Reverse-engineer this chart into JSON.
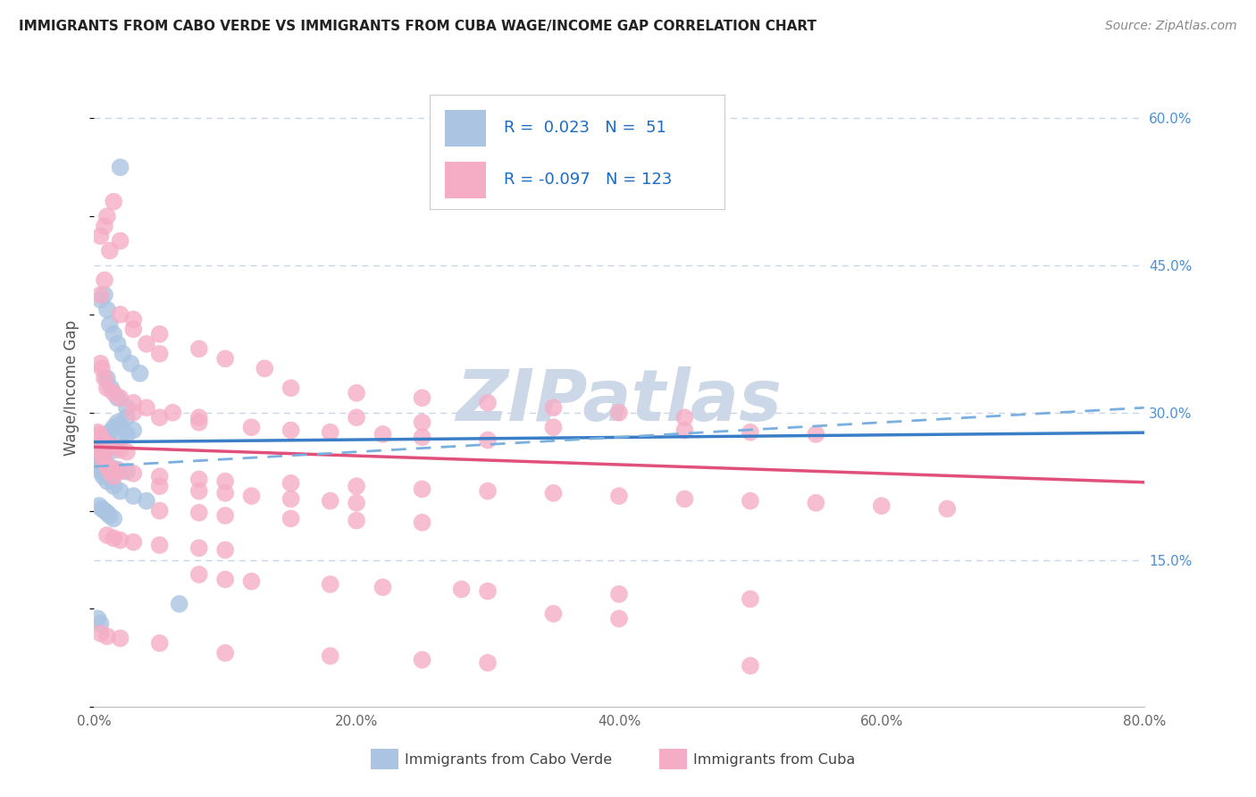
{
  "title": "IMMIGRANTS FROM CABO VERDE VS IMMIGRANTS FROM CUBA WAGE/INCOME GAP CORRELATION CHART",
  "source": "Source: ZipAtlas.com",
  "ylabel": "Wage/Income Gap",
  "cabo_verde_R": "0.023",
  "cabo_verde_N": "51",
  "cuba_R": "-0.097",
  "cuba_N": "123",
  "cabo_verde_color": "#aac4e2",
  "cuba_color": "#f5adc5",
  "cabo_verde_line_color": "#3a7ec8",
  "cuba_line_color": "#e0507a",
  "cabo_verde_dashed_color": "#7ab0e0",
  "legend_r_color": "#1a6bc4",
  "watermark": "ZIPatlas",
  "cabo_verde_points_x": [
    1.0,
    1.2,
    1.5,
    1.8,
    2.0,
    2.5,
    0.5,
    0.8,
    1.0,
    1.2,
    1.5,
    1.8,
    2.2,
    2.8,
    3.5,
    1.0,
    1.3,
    1.8,
    2.5,
    0.5,
    0.8,
    1.0,
    1.5,
    2.0,
    2.5,
    3.0,
    0.3,
    0.5,
    0.7,
    1.0,
    1.5,
    2.0,
    3.0,
    4.0,
    0.5,
    0.6,
    0.7,
    0.8,
    1.2,
    1.8,
    2.5,
    0.4,
    0.6,
    0.8,
    1.0,
    1.2,
    1.5,
    0.3,
    0.5,
    6.5,
    2.0
  ],
  "cabo_verde_points_y": [
    27.5,
    28.0,
    28.5,
    29.0,
    28.8,
    29.5,
    41.5,
    42.0,
    40.5,
    39.0,
    38.0,
    37.0,
    36.0,
    35.0,
    34.0,
    33.5,
    32.5,
    31.5,
    30.5,
    26.5,
    27.0,
    26.8,
    26.2,
    27.2,
    27.8,
    28.2,
    24.5,
    24.0,
    23.5,
    23.0,
    22.5,
    22.0,
    21.5,
    21.0,
    25.5,
    25.2,
    25.0,
    24.8,
    24.5,
    24.2,
    24.0,
    20.5,
    20.2,
    20.0,
    19.8,
    19.5,
    19.2,
    9.0,
    8.5,
    10.5,
    55.0
  ],
  "cuba_points_x": [
    0.5,
    0.6,
    0.7,
    0.8,
    1.0,
    1.2,
    1.5,
    0.3,
    0.4,
    0.5,
    0.6,
    0.8,
    1.0,
    1.5,
    2.0,
    2.5,
    3.0,
    4.0,
    5.0,
    0.5,
    0.6,
    0.8,
    1.0,
    1.5,
    2.0,
    3.0,
    4.0,
    6.0,
    8.0,
    2.0,
    3.0,
    5.0,
    8.0,
    10.0,
    13.0,
    5.0,
    8.0,
    10.0,
    12.0,
    15.0,
    18.0,
    20.0,
    5.0,
    8.0,
    10.0,
    15.0,
    20.0,
    25.0,
    3.0,
    5.0,
    8.0,
    12.0,
    15.0,
    18.0,
    22.0,
    25.0,
    30.0,
    1.0,
    1.5,
    2.0,
    3.0,
    5.0,
    8.0,
    10.0,
    15.0,
    20.0,
    25.0,
    30.0,
    35.0,
    40.0,
    45.0,
    50.0,
    55.0,
    60.0,
    65.0,
    1.0,
    1.5,
    2.0,
    3.0,
    5.0,
    8.0,
    10.0,
    0.5,
    0.8,
    1.2,
    2.0,
    0.5,
    0.8,
    1.0,
    1.5,
    20.0,
    25.0,
    35.0,
    45.0,
    50.0,
    55.0,
    15.0,
    20.0,
    25.0,
    30.0,
    35.0,
    40.0,
    45.0,
    8.0,
    10.0,
    12.0,
    18.0,
    22.0,
    28.0,
    30.0,
    40.0,
    50.0,
    35.0,
    40.0,
    0.5,
    1.0,
    2.0,
    5.0,
    10.0,
    18.0,
    25.0,
    30.0,
    50.0
  ],
  "cuba_points_y": [
    26.5,
    26.0,
    25.5,
    25.0,
    24.5,
    24.0,
    23.5,
    28.0,
    27.8,
    27.5,
    27.2,
    27.0,
    26.8,
    26.5,
    26.2,
    26.0,
    38.5,
    37.0,
    36.0,
    35.0,
    34.5,
    33.5,
    32.5,
    32.0,
    31.5,
    31.0,
    30.5,
    30.0,
    29.5,
    40.0,
    39.5,
    38.0,
    36.5,
    35.5,
    34.5,
    22.5,
    22.0,
    21.8,
    21.5,
    21.2,
    21.0,
    20.8,
    20.0,
    19.8,
    19.5,
    19.2,
    19.0,
    18.8,
    30.0,
    29.5,
    29.0,
    28.5,
    28.2,
    28.0,
    27.8,
    27.5,
    27.2,
    24.5,
    24.2,
    24.0,
    23.8,
    23.5,
    23.2,
    23.0,
    22.8,
    22.5,
    22.2,
    22.0,
    21.8,
    21.5,
    21.2,
    21.0,
    20.8,
    20.5,
    20.2,
    17.5,
    17.2,
    17.0,
    16.8,
    16.5,
    16.2,
    16.0,
    42.0,
    43.5,
    46.5,
    47.5,
    48.0,
    49.0,
    50.0,
    51.5,
    29.5,
    29.0,
    28.5,
    28.2,
    28.0,
    27.8,
    32.5,
    32.0,
    31.5,
    31.0,
    30.5,
    30.0,
    29.5,
    13.5,
    13.0,
    12.8,
    12.5,
    12.2,
    12.0,
    11.8,
    11.5,
    11.0,
    9.5,
    9.0,
    7.5,
    7.2,
    7.0,
    6.5,
    5.5,
    5.2,
    4.8,
    4.5,
    4.2
  ],
  "bg_color": "#ffffff",
  "grid_color": "#c8d4e8",
  "watermark_color": "#ccd8e8",
  "xlim": [
    0,
    80
  ],
  "ylim": [
    0,
    65
  ],
  "x_ticks": [
    0,
    20,
    40,
    60,
    80
  ],
  "y_ticks": [
    0,
    15,
    30,
    45,
    60
  ],
  "trend_cv_x0": 27.0,
  "trend_cv_slope": 0.012,
  "trend_cu_x0": 26.5,
  "trend_cu_slope": -0.045,
  "trend_dash_x0": 24.5,
  "trend_dash_slope": 0.075
}
